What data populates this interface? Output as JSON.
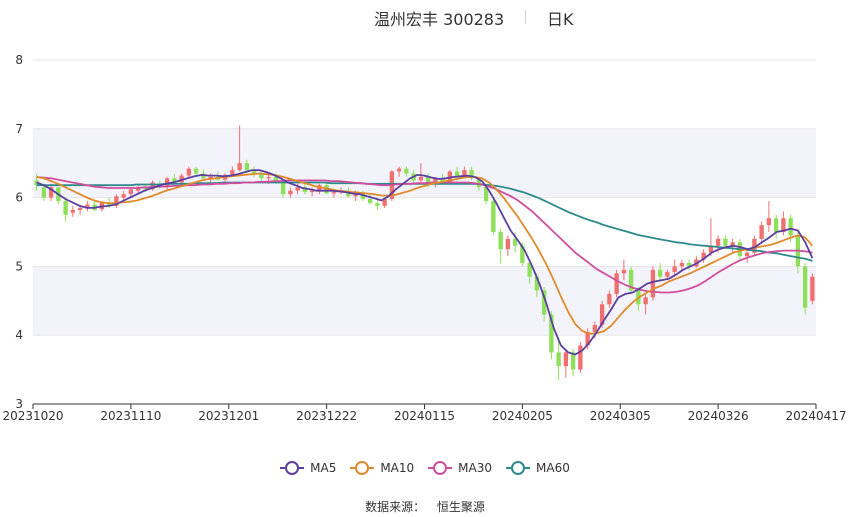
{
  "title": {
    "name": "温州宏丰 300283",
    "period": "日K"
  },
  "legend": [
    {
      "label": "MA5",
      "color": "#5b3fa0"
    },
    {
      "label": "MA10",
      "color": "#e08a2c"
    },
    {
      "label": "MA30",
      "color": "#cf4f9e"
    },
    {
      "label": "MA60",
      "color": "#2f8a8c"
    }
  ],
  "source": {
    "label": "数据来源：",
    "value": "恒生聚源"
  },
  "colors": {
    "up": "#f07070",
    "down": "#8ee05a",
    "grid": "#e6e6e6",
    "band": "#f3f4fb"
  },
  "chart_data": {
    "type": "candlestick",
    "ylim": [
      3,
      8
    ],
    "yticks": [
      "3",
      "4",
      "5",
      "6",
      "7",
      "8"
    ],
    "xticks": [
      "20231020",
      "20231110",
      "20231201",
      "20231222",
      "20240115",
      "20240205",
      "20240305",
      "20240326",
      "20240417"
    ],
    "candles": [
      [
        6.25,
        6.35,
        6.1,
        6.18
      ],
      [
        6.15,
        6.2,
        5.95,
        6.0
      ],
      [
        6.0,
        6.2,
        5.95,
        6.15
      ],
      [
        6.15,
        6.15,
        5.9,
        5.95
      ],
      [
        5.95,
        6.0,
        5.65,
        5.75
      ],
      [
        5.78,
        5.88,
        5.72,
        5.82
      ],
      [
        5.82,
        5.9,
        5.75,
        5.85
      ],
      [
        5.85,
        5.95,
        5.8,
        5.9
      ],
      [
        5.9,
        5.95,
        5.8,
        5.82
      ],
      [
        5.83,
        5.95,
        5.8,
        5.92
      ],
      [
        5.92,
        6.0,
        5.85,
        5.88
      ],
      [
        5.88,
        6.05,
        5.85,
        6.02
      ],
      [
        6.0,
        6.1,
        5.95,
        6.05
      ],
      [
        6.05,
        6.15,
        6.0,
        6.12
      ],
      [
        6.1,
        6.2,
        6.05,
        6.15
      ],
      [
        6.15,
        6.2,
        6.08,
        6.12
      ],
      [
        6.12,
        6.25,
        6.1,
        6.22
      ],
      [
        6.2,
        6.25,
        6.12,
        6.15
      ],
      [
        6.15,
        6.3,
        6.12,
        6.28
      ],
      [
        6.28,
        6.35,
        6.2,
        6.22
      ],
      [
        6.22,
        6.35,
        6.18,
        6.32
      ],
      [
        6.32,
        6.45,
        6.28,
        6.42
      ],
      [
        6.42,
        6.45,
        6.3,
        6.35
      ],
      [
        6.35,
        6.4,
        6.25,
        6.28
      ],
      [
        6.28,
        6.35,
        6.22,
        6.3
      ],
      [
        6.3,
        6.38,
        6.25,
        6.26
      ],
      [
        6.26,
        6.35,
        6.22,
        6.33
      ],
      [
        6.33,
        6.45,
        6.3,
        6.4
      ],
      [
        6.4,
        7.05,
        6.38,
        6.5
      ],
      [
        6.5,
        6.55,
        6.35,
        6.4
      ],
      [
        6.4,
        6.45,
        6.3,
        6.35
      ],
      [
        6.35,
        6.4,
        6.25,
        6.28
      ],
      [
        6.28,
        6.35,
        6.2,
        6.3
      ],
      [
        6.3,
        6.35,
        6.2,
        6.22
      ],
      [
        6.22,
        6.25,
        6.0,
        6.05
      ],
      [
        6.05,
        6.15,
        6.0,
        6.1
      ],
      [
        6.1,
        6.2,
        6.05,
        6.15
      ],
      [
        6.15,
        6.2,
        6.05,
        6.08
      ],
      [
        6.08,
        6.15,
        6.02,
        6.1
      ],
      [
        6.1,
        6.2,
        6.05,
        6.18
      ],
      [
        6.18,
        6.22,
        6.05,
        6.06
      ],
      [
        6.06,
        6.12,
        6.0,
        6.08
      ],
      [
        6.08,
        6.15,
        6.05,
        6.1
      ],
      [
        6.1,
        6.15,
        6.0,
        6.02
      ],
      [
        6.02,
        6.1,
        5.95,
        6.05
      ],
      [
        6.05,
        6.1,
        5.95,
        5.98
      ],
      [
        5.98,
        6.05,
        5.9,
        5.92
      ],
      [
        5.92,
        6.0,
        5.82,
        5.88
      ],
      [
        5.88,
        6.0,
        5.85,
        5.98
      ],
      [
        5.98,
        6.4,
        5.95,
        6.38
      ],
      [
        6.38,
        6.45,
        6.3,
        6.42
      ],
      [
        6.42,
        6.45,
        6.3,
        6.35
      ],
      [
        6.35,
        6.4,
        6.2,
        6.25
      ],
      [
        6.25,
        6.5,
        6.22,
        6.3
      ],
      [
        6.3,
        6.35,
        6.15,
        6.2
      ],
      [
        6.2,
        6.3,
        6.15,
        6.28
      ],
      [
        6.28,
        6.35,
        6.2,
        6.22
      ],
      [
        6.22,
        6.4,
        6.2,
        6.38
      ],
      [
        6.38,
        6.45,
        6.25,
        6.3
      ],
      [
        6.3,
        6.45,
        6.28,
        6.4
      ],
      [
        6.4,
        6.45,
        6.25,
        6.28
      ],
      [
        6.28,
        6.3,
        6.1,
        6.15
      ],
      [
        6.15,
        6.2,
        5.9,
        5.95
      ],
      [
        5.95,
        6.0,
        5.45,
        5.5
      ],
      [
        5.5,
        5.55,
        5.05,
        5.25
      ],
      [
        5.25,
        5.45,
        5.15,
        5.4
      ],
      [
        5.4,
        5.5,
        5.2,
        5.3
      ],
      [
        5.3,
        5.35,
        5.0,
        5.05
      ],
      [
        5.05,
        5.1,
        4.75,
        4.85
      ],
      [
        4.85,
        4.9,
        4.55,
        4.65
      ],
      [
        4.65,
        4.7,
        4.2,
        4.3
      ],
      [
        4.3,
        4.35,
        3.65,
        3.75
      ],
      [
        3.75,
        3.95,
        3.35,
        3.55
      ],
      [
        3.55,
        3.8,
        3.38,
        3.75
      ],
      [
        3.75,
        3.8,
        3.4,
        3.5
      ],
      [
        3.5,
        3.9,
        3.45,
        3.85
      ],
      [
        3.85,
        4.1,
        3.8,
        4.05
      ],
      [
        4.05,
        4.2,
        3.95,
        4.15
      ],
      [
        4.15,
        4.5,
        4.1,
        4.45
      ],
      [
        4.45,
        4.65,
        4.4,
        4.6
      ],
      [
        4.6,
        4.95,
        4.55,
        4.9
      ],
      [
        4.9,
        5.1,
        4.8,
        4.95
      ],
      [
        4.95,
        5.0,
        4.6,
        4.65
      ],
      [
        4.65,
        4.7,
        4.35,
        4.45
      ],
      [
        4.45,
        4.6,
        4.3,
        4.55
      ],
      [
        4.55,
        5.0,
        4.5,
        4.95
      ],
      [
        4.95,
        5.05,
        4.8,
        4.85
      ],
      [
        4.85,
        4.95,
        4.8,
        4.92
      ],
      [
        4.92,
        5.1,
        4.85,
        5.0
      ],
      [
        5.0,
        5.1,
        4.95,
        5.05
      ],
      [
        5.05,
        5.1,
        4.95,
        5.0
      ],
      [
        5.0,
        5.15,
        4.98,
        5.1
      ],
      [
        5.1,
        5.25,
        5.05,
        5.2
      ],
      [
        5.2,
        5.7,
        5.15,
        5.3
      ],
      [
        5.3,
        5.45,
        5.2,
        5.4
      ],
      [
        5.4,
        5.45,
        5.25,
        5.3
      ],
      [
        5.3,
        5.4,
        5.2,
        5.35
      ],
      [
        5.35,
        5.4,
        5.1,
        5.15
      ],
      [
        5.15,
        5.25,
        5.05,
        5.2
      ],
      [
        5.2,
        5.45,
        5.15,
        5.4
      ],
      [
        5.4,
        5.65,
        5.35,
        5.6
      ],
      [
        5.6,
        5.95,
        5.5,
        5.7
      ],
      [
        5.7,
        5.75,
        5.4,
        5.5
      ],
      [
        5.5,
        5.8,
        5.45,
        5.7
      ],
      [
        5.7,
        5.75,
        5.35,
        5.45
      ],
      [
        5.45,
        5.5,
        4.9,
        5.0
      ],
      [
        5.0,
        5.05,
        4.3,
        4.4
      ],
      [
        4.5,
        4.9,
        4.45,
        4.85
      ]
    ],
    "ma": {
      "MA5": [
        6.22,
        6.18,
        6.12,
        6.05,
        5.98,
        5.93,
        5.88,
        5.85,
        5.85,
        5.87,
        5.88,
        5.9,
        5.95,
        6.0,
        6.05,
        6.1,
        6.14,
        6.17,
        6.2,
        6.22,
        6.25,
        6.28,
        6.31,
        6.33,
        6.32,
        6.32,
        6.31,
        6.32,
        6.34,
        6.37,
        6.4,
        6.4,
        6.37,
        6.33,
        6.28,
        6.22,
        6.18,
        6.14,
        6.12,
        6.1,
        6.1,
        6.1,
        6.09,
        6.08,
        6.06,
        6.05,
        6.02,
        5.99,
        5.96,
        6.02,
        6.12,
        6.2,
        6.28,
        6.33,
        6.32,
        6.29,
        6.27,
        6.28,
        6.3,
        6.31,
        6.32,
        6.3,
        6.24,
        6.1,
        5.92,
        5.72,
        5.52,
        5.38,
        5.22,
        5.0,
        4.75,
        4.45,
        4.1,
        3.85,
        3.75,
        3.72,
        3.78,
        3.9,
        4.05,
        4.22,
        4.38,
        4.55,
        4.6,
        4.62,
        4.68,
        4.75,
        4.78,
        4.8,
        4.82,
        4.88,
        4.95,
        5.0,
        5.05,
        5.12,
        5.2,
        5.25,
        5.28,
        5.3,
        5.28,
        5.25,
        5.28,
        5.35,
        5.42,
        5.5,
        5.52,
        5.55,
        5.52,
        5.35,
        5.12
      ],
      "MA10": [
        6.3,
        6.28,
        6.24,
        6.2,
        6.15,
        6.1,
        6.05,
        6.0,
        5.96,
        5.93,
        5.92,
        5.92,
        5.93,
        5.94,
        5.96,
        5.99,
        6.02,
        6.06,
        6.1,
        6.13,
        6.16,
        6.19,
        6.22,
        6.25,
        6.27,
        6.28,
        6.3,
        6.31,
        6.32,
        6.33,
        6.34,
        6.35,
        6.34,
        6.33,
        6.31,
        6.28,
        6.25,
        6.22,
        6.19,
        6.16,
        6.14,
        6.12,
        6.1,
        6.09,
        6.08,
        6.07,
        6.06,
        6.05,
        6.03,
        6.03,
        6.04,
        6.07,
        6.1,
        6.14,
        6.17,
        6.2,
        6.22,
        6.24,
        6.26,
        6.28,
        6.3,
        6.3,
        6.28,
        6.22,
        6.12,
        6.0,
        5.86,
        5.72,
        5.56,
        5.4,
        5.22,
        5.02,
        4.8,
        4.56,
        4.34,
        4.16,
        4.06,
        4.02,
        4.03,
        4.06,
        4.14,
        4.26,
        4.38,
        4.48,
        4.56,
        4.62,
        4.68,
        4.72,
        4.78,
        4.82,
        4.86,
        4.9,
        4.95,
        5.0,
        5.05,
        5.1,
        5.15,
        5.2,
        5.23,
        5.25,
        5.27,
        5.29,
        5.31,
        5.34,
        5.38,
        5.42,
        5.45,
        5.42,
        5.3
      ],
      "MA30": [
        6.3,
        6.29,
        6.28,
        6.26,
        6.24,
        6.22,
        6.2,
        6.18,
        6.16,
        6.15,
        6.14,
        6.14,
        6.14,
        6.14,
        6.14,
        6.15,
        6.15,
        6.16,
        6.16,
        6.17,
        6.17,
        6.18,
        6.18,
        6.19,
        6.19,
        6.2,
        6.2,
        6.21,
        6.21,
        6.22,
        6.22,
        6.23,
        6.23,
        6.24,
        6.24,
        6.25,
        6.25,
        6.25,
        6.25,
        6.25,
        6.25,
        6.24,
        6.24,
        6.23,
        6.22,
        6.21,
        6.2,
        6.19,
        6.18,
        6.18,
        6.19,
        6.2,
        6.2,
        6.21,
        6.21,
        6.22,
        6.22,
        6.22,
        6.22,
        6.22,
        6.22,
        6.21,
        6.19,
        6.16,
        6.12,
        6.07,
        6.02,
        5.96,
        5.88,
        5.8,
        5.7,
        5.6,
        5.5,
        5.4,
        5.3,
        5.2,
        5.12,
        5.04,
        4.96,
        4.9,
        4.84,
        4.78,
        4.73,
        4.69,
        4.66,
        4.64,
        4.63,
        4.62,
        4.62,
        4.63,
        4.65,
        4.68,
        4.72,
        4.78,
        4.85,
        4.92,
        4.98,
        5.04,
        5.09,
        5.13,
        5.16,
        5.19,
        5.21,
        5.22,
        5.23,
        5.23,
        5.23,
        5.22,
        5.2
      ],
      "MA60": [
        6.18,
        6.18,
        6.18,
        6.18,
        6.18,
        6.18,
        6.18,
        6.18,
        6.18,
        6.18,
        6.18,
        6.18,
        6.18,
        6.18,
        6.19,
        6.19,
        6.19,
        6.19,
        6.2,
        6.2,
        6.2,
        6.2,
        6.21,
        6.21,
        6.21,
        6.21,
        6.22,
        6.22,
        6.22,
        6.22,
        6.22,
        6.22,
        6.22,
        6.22,
        6.22,
        6.22,
        6.22,
        6.22,
        6.22,
        6.22,
        6.22,
        6.21,
        6.21,
        6.21,
        6.21,
        6.21,
        6.2,
        6.2,
        6.2,
        6.2,
        6.2,
        6.2,
        6.2,
        6.2,
        6.2,
        6.2,
        6.2,
        6.2,
        6.2,
        6.2,
        6.2,
        6.2,
        6.19,
        6.18,
        6.17,
        6.15,
        6.13,
        6.1,
        6.07,
        6.03,
        5.99,
        5.94,
        5.89,
        5.84,
        5.79,
        5.75,
        5.71,
        5.67,
        5.64,
        5.6,
        5.57,
        5.54,
        5.51,
        5.48,
        5.45,
        5.43,
        5.41,
        5.39,
        5.37,
        5.35,
        5.34,
        5.32,
        5.31,
        5.3,
        5.29,
        5.28,
        5.27,
        5.26,
        5.25,
        5.24,
        5.23,
        5.22,
        5.2,
        5.19,
        5.17,
        5.15,
        5.13,
        5.11,
        5.08
      ]
    }
  }
}
